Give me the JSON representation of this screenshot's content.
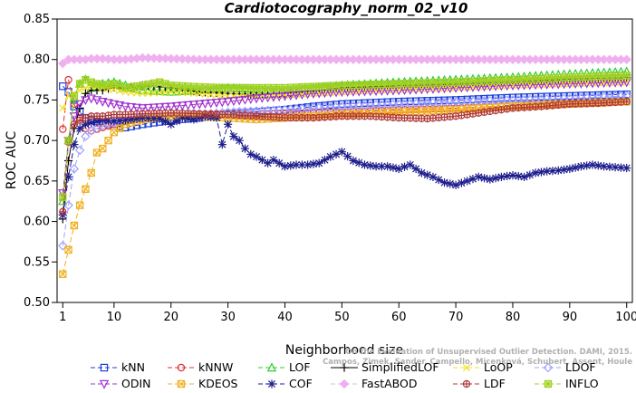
{
  "chart_data": {
    "type": "line",
    "title": "Cardiotocography_norm_02_v10",
    "xlabel": "Neighborhood size",
    "ylabel": "ROC AUC",
    "xlim": [
      0,
      101
    ],
    "ylim": [
      0.5,
      0.85
    ],
    "xticks": [
      1,
      10,
      20,
      30,
      40,
      50,
      60,
      70,
      80,
      90,
      100
    ],
    "yticks": [
      "0.50",
      "0.55",
      "0.60",
      "0.65",
      "0.70",
      "0.75",
      "0.80",
      "0.85"
    ],
    "grid": false,
    "legend_placement": "bottom",
    "watermark": [
      "Campos, Zimek, Sander, Campello, Micenková, Schubert, Assent, Houle",
      "On the Evaluation of Unsupervised Outlier Detection. DAMI, 2015."
    ],
    "series": [
      {
        "name": "kNN",
        "color": "#1a3fd6",
        "marker": "square",
        "dash": "6,3",
        "points": [
          [
            1,
            0.767
          ],
          [
            2,
            0.76
          ],
          [
            3,
            0.742
          ],
          [
            4,
            0.735
          ],
          [
            5,
            0.728
          ],
          [
            6,
            0.725
          ],
          [
            8,
            0.722
          ],
          [
            10,
            0.718
          ],
          [
            12,
            0.716
          ],
          [
            15,
            0.72
          ],
          [
            20,
            0.725
          ],
          [
            25,
            0.728
          ],
          [
            30,
            0.733
          ],
          [
            35,
            0.735
          ],
          [
            40,
            0.738
          ],
          [
            45,
            0.742
          ],
          [
            50,
            0.745
          ],
          [
            60,
            0.748
          ],
          [
            70,
            0.75
          ],
          [
            80,
            0.753
          ],
          [
            90,
            0.755
          ],
          [
            100,
            0.757
          ]
        ]
      },
      {
        "name": "kNNW",
        "color": "#e03030",
        "marker": "circle",
        "dash": "6,3",
        "points": [
          [
            1,
            0.714
          ],
          [
            2,
            0.775
          ],
          [
            3,
            0.745
          ],
          [
            4,
            0.728
          ],
          [
            5,
            0.715
          ],
          [
            6,
            0.712
          ],
          [
            8,
            0.716
          ],
          [
            10,
            0.72
          ],
          [
            12,
            0.724
          ],
          [
            15,
            0.727
          ],
          [
            20,
            0.73
          ],
          [
            25,
            0.731
          ],
          [
            30,
            0.732
          ],
          [
            40,
            0.733
          ],
          [
            50,
            0.735
          ],
          [
            60,
            0.738
          ],
          [
            70,
            0.74
          ],
          [
            80,
            0.743
          ],
          [
            90,
            0.746
          ],
          [
            100,
            0.748
          ]
        ]
      },
      {
        "name": "LOF",
        "color": "#2ecc2e",
        "marker": "triangle-up",
        "dash": "6,3",
        "points": [
          [
            1,
            0.625
          ],
          [
            2,
            0.7
          ],
          [
            3,
            0.752
          ],
          [
            4,
            0.77
          ],
          [
            5,
            0.775
          ],
          [
            6,
            0.765
          ],
          [
            8,
            0.77
          ],
          [
            10,
            0.772
          ],
          [
            12,
            0.768
          ],
          [
            15,
            0.762
          ],
          [
            20,
            0.76
          ],
          [
            25,
            0.762
          ],
          [
            30,
            0.765
          ],
          [
            35,
            0.763
          ],
          [
            40,
            0.762
          ],
          [
            45,
            0.765
          ],
          [
            50,
            0.768
          ],
          [
            60,
            0.772
          ],
          [
            70,
            0.775
          ],
          [
            80,
            0.778
          ],
          [
            90,
            0.782
          ],
          [
            100,
            0.785
          ]
        ]
      },
      {
        "name": "SimplifiedLOF",
        "color": "#000000",
        "marker": "plus",
        "dash": "none",
        "points": [
          [
            1,
            0.603
          ],
          [
            2,
            0.675
          ],
          [
            3,
            0.715
          ],
          [
            4,
            0.74
          ],
          [
            5,
            0.758
          ],
          [
            6,
            0.762
          ],
          [
            8,
            0.762
          ],
          [
            10,
            0.766
          ],
          [
            12,
            0.764
          ],
          [
            15,
            0.768
          ],
          [
            20,
            0.765
          ],
          [
            25,
            0.76
          ],
          [
            30,
            0.758
          ],
          [
            35,
            0.757
          ],
          [
            40,
            0.758
          ],
          [
            45,
            0.762
          ],
          [
            50,
            0.765
          ],
          [
            60,
            0.768
          ],
          [
            70,
            0.77
          ],
          [
            80,
            0.772
          ],
          [
            90,
            0.776
          ],
          [
            100,
            0.778
          ]
        ]
      },
      {
        "name": "LoOP",
        "color": "#f0e020",
        "marker": "x",
        "dash": "6,3",
        "points": [
          [
            1,
            0.74
          ],
          [
            2,
            0.755
          ],
          [
            3,
            0.758
          ],
          [
            4,
            0.762
          ],
          [
            5,
            0.765
          ],
          [
            6,
            0.767
          ],
          [
            8,
            0.765
          ],
          [
            10,
            0.763
          ],
          [
            12,
            0.76
          ],
          [
            15,
            0.758
          ],
          [
            20,
            0.76
          ],
          [
            25,
            0.758
          ],
          [
            30,
            0.755
          ],
          [
            40,
            0.756
          ],
          [
            50,
            0.76
          ],
          [
            60,
            0.763
          ],
          [
            70,
            0.765
          ],
          [
            80,
            0.768
          ],
          [
            90,
            0.77
          ],
          [
            100,
            0.772
          ]
        ]
      },
      {
        "name": "LDOF",
        "color": "#a0a0ff",
        "marker": "diamond",
        "dash": "6,3",
        "points": [
          [
            1,
            0.57
          ],
          [
            2,
            0.62
          ],
          [
            3,
            0.665
          ],
          [
            4,
            0.688
          ],
          [
            5,
            0.705
          ],
          [
            6,
            0.712
          ],
          [
            8,
            0.718
          ],
          [
            10,
            0.722
          ],
          [
            12,
            0.725
          ],
          [
            15,
            0.728
          ],
          [
            20,
            0.73
          ],
          [
            25,
            0.732
          ],
          [
            30,
            0.735
          ],
          [
            40,
            0.738
          ],
          [
            50,
            0.742
          ],
          [
            60,
            0.745
          ],
          [
            70,
            0.748
          ],
          [
            80,
            0.75
          ],
          [
            90,
            0.752
          ],
          [
            100,
            0.755
          ]
        ]
      },
      {
        "name": "ODIN",
        "color": "#a030d0",
        "marker": "triangle-down",
        "dash": "6,3",
        "points": [
          [
            1,
            0.635
          ],
          [
            2,
            0.7
          ],
          [
            3,
            0.73
          ],
          [
            4,
            0.745
          ],
          [
            5,
            0.75
          ],
          [
            6,
            0.752
          ],
          [
            8,
            0.748
          ],
          [
            10,
            0.745
          ],
          [
            12,
            0.742
          ],
          [
            15,
            0.74
          ],
          [
            20,
            0.742
          ],
          [
            25,
            0.745
          ],
          [
            30,
            0.748
          ],
          [
            35,
            0.752
          ],
          [
            40,
            0.755
          ],
          [
            45,
            0.758
          ],
          [
            50,
            0.76
          ],
          [
            60,
            0.762
          ],
          [
            70,
            0.765
          ],
          [
            80,
            0.768
          ],
          [
            90,
            0.77
          ],
          [
            100,
            0.772
          ]
        ]
      },
      {
        "name": "KDEOS",
        "color": "#f0b020",
        "marker": "square-x",
        "dash": "6,3",
        "points": [
          [
            1,
            0.535
          ],
          [
            2,
            0.565
          ],
          [
            3,
            0.595
          ],
          [
            4,
            0.62
          ],
          [
            5,
            0.64
          ],
          [
            6,
            0.66
          ],
          [
            7,
            0.685
          ],
          [
            8,
            0.69
          ],
          [
            9,
            0.7
          ],
          [
            10,
            0.71
          ],
          [
            12,
            0.72
          ],
          [
            15,
            0.726
          ],
          [
            20,
            0.73
          ],
          [
            25,
            0.73
          ],
          [
            30,
            0.728
          ],
          [
            35,
            0.726
          ],
          [
            40,
            0.728
          ],
          [
            45,
            0.73
          ],
          [
            50,
            0.732
          ],
          [
            60,
            0.735
          ],
          [
            70,
            0.738
          ],
          [
            80,
            0.742
          ],
          [
            90,
            0.745
          ],
          [
            100,
            0.748
          ]
        ]
      },
      {
        "name": "COF",
        "color": "#1c1c8c",
        "marker": "star",
        "dash": "6,3",
        "points": [
          [
            1,
            0.608
          ],
          [
            2,
            0.655
          ],
          [
            3,
            0.695
          ],
          [
            4,
            0.715
          ],
          [
            5,
            0.72
          ],
          [
            6,
            0.722
          ],
          [
            8,
            0.725
          ],
          [
            10,
            0.724
          ],
          [
            12,
            0.725
          ],
          [
            15,
            0.728
          ],
          [
            18,
            0.727
          ],
          [
            20,
            0.72
          ],
          [
            22,
            0.728
          ],
          [
            24,
            0.726
          ],
          [
            26,
            0.73
          ],
          [
            28,
            0.728
          ],
          [
            29,
            0.695
          ],
          [
            30,
            0.72
          ],
          [
            31,
            0.705
          ],
          [
            32,
            0.7
          ],
          [
            33,
            0.69
          ],
          [
            34,
            0.683
          ],
          [
            35,
            0.68
          ],
          [
            36,
            0.676
          ],
          [
            37,
            0.672
          ],
          [
            38,
            0.676
          ],
          [
            40,
            0.668
          ],
          [
            42,
            0.67
          ],
          [
            44,
            0.67
          ],
          [
            46,
            0.672
          ],
          [
            48,
            0.68
          ],
          [
            50,
            0.686
          ],
          [
            52,
            0.675
          ],
          [
            54,
            0.67
          ],
          [
            56,
            0.668
          ],
          [
            58,
            0.668
          ],
          [
            60,
            0.665
          ],
          [
            62,
            0.67
          ],
          [
            64,
            0.66
          ],
          [
            66,
            0.655
          ],
          [
            68,
            0.648
          ],
          [
            70,
            0.645
          ],
          [
            72,
            0.65
          ],
          [
            74,
            0.655
          ],
          [
            76,
            0.652
          ],
          [
            78,
            0.655
          ],
          [
            80,
            0.657
          ],
          [
            82,
            0.655
          ],
          [
            84,
            0.66
          ],
          [
            86,
            0.662
          ],
          [
            88,
            0.663
          ],
          [
            90,
            0.665
          ],
          [
            92,
            0.668
          ],
          [
            94,
            0.67
          ],
          [
            96,
            0.668
          ],
          [
            98,
            0.667
          ],
          [
            100,
            0.666
          ]
        ]
      },
      {
        "name": "FastABOD",
        "color": "#f0b0f0",
        "marker": "diamond-filled",
        "dash": "6,3",
        "points": [
          [
            1,
            0.795
          ],
          [
            2,
            0.8
          ],
          [
            3,
            0.8
          ],
          [
            4,
            0.8
          ],
          [
            5,
            0.8
          ],
          [
            6,
            0.801
          ],
          [
            8,
            0.801
          ],
          [
            10,
            0.8
          ],
          [
            12,
            0.8
          ],
          [
            15,
            0.802
          ],
          [
            20,
            0.801
          ],
          [
            25,
            0.8
          ],
          [
            30,
            0.8
          ],
          [
            40,
            0.8
          ],
          [
            50,
            0.8
          ],
          [
            60,
            0.8
          ],
          [
            70,
            0.8
          ],
          [
            80,
            0.8
          ],
          [
            90,
            0.8
          ],
          [
            100,
            0.8
          ]
        ]
      },
      {
        "name": "LDF",
        "color": "#b03a3a",
        "marker": "circle-plus",
        "dash": "6,3",
        "points": [
          [
            1,
            0.612
          ],
          [
            2,
            0.698
          ],
          [
            3,
            0.72
          ],
          [
            4,
            0.725
          ],
          [
            5,
            0.728
          ],
          [
            6,
            0.73
          ],
          [
            8,
            0.73
          ],
          [
            10,
            0.732
          ],
          [
            12,
            0.732
          ],
          [
            15,
            0.733
          ],
          [
            20,
            0.734
          ],
          [
            25,
            0.733
          ],
          [
            30,
            0.732
          ],
          [
            35,
            0.73
          ],
          [
            40,
            0.728
          ],
          [
            45,
            0.728
          ],
          [
            50,
            0.73
          ],
          [
            55,
            0.73
          ],
          [
            60,
            0.728
          ],
          [
            65,
            0.727
          ],
          [
            70,
            0.73
          ],
          [
            75,
            0.735
          ],
          [
            80,
            0.74
          ],
          [
            85,
            0.742
          ],
          [
            90,
            0.745
          ],
          [
            95,
            0.746
          ],
          [
            100,
            0.748
          ]
        ]
      },
      {
        "name": "INFLO",
        "color": "#a0d020",
        "marker": "square-star",
        "dash": "6,3",
        "points": [
          [
            1,
            0.63
          ],
          [
            2,
            0.7
          ],
          [
            3,
            0.755
          ],
          [
            4,
            0.77
          ],
          [
            5,
            0.775
          ],
          [
            6,
            0.772
          ],
          [
            8,
            0.768
          ],
          [
            10,
            0.77
          ],
          [
            12,
            0.765
          ],
          [
            15,
            0.768
          ],
          [
            18,
            0.772
          ],
          [
            20,
            0.768
          ],
          [
            25,
            0.766
          ],
          [
            30,
            0.765
          ],
          [
            40,
            0.765
          ],
          [
            50,
            0.768
          ],
          [
            60,
            0.77
          ],
          [
            70,
            0.772
          ],
          [
            80,
            0.775
          ],
          [
            90,
            0.778
          ],
          [
            100,
            0.78
          ]
        ]
      }
    ]
  }
}
